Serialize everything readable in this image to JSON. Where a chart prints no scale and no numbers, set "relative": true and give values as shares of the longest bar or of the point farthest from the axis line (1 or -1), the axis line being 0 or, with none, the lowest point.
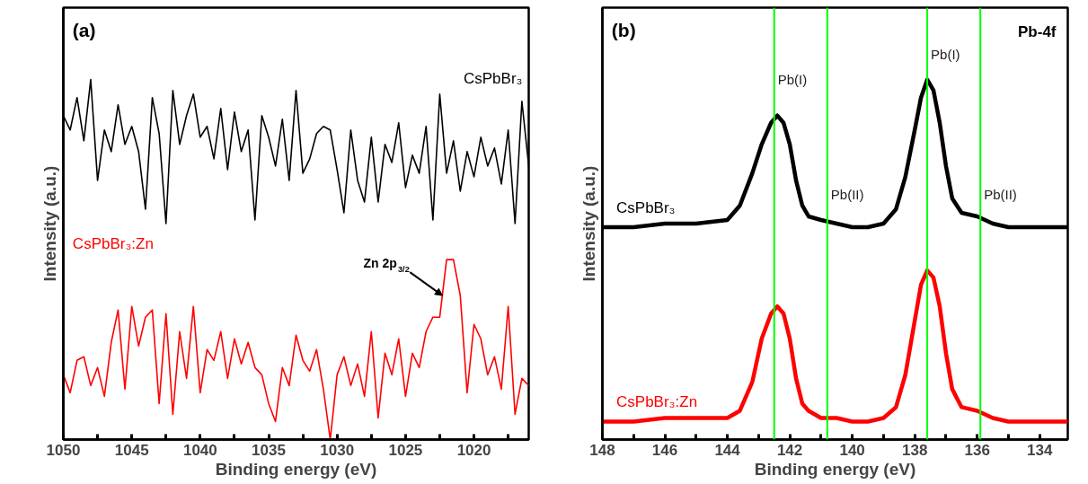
{
  "chart_data": [
    {
      "type": "line",
      "relative": true,
      "xlabel": "Binding energy (eV)",
      "ylabel": "Intensity (a.u.)",
      "xlim": [
        1050,
        1016
      ],
      "xticks": [
        1050,
        {
          "value": 1047.5,
          "label": null
        },
        1045,
        {
          "value": 1042.5,
          "label": null
        },
        1040,
        {
          "value": 1037.5,
          "label": null
        },
        1035,
        {
          "value": 1032.5,
          "label": null
        },
        1030,
        {
          "value": 1027.5,
          "label": null
        },
        1025,
        {
          "value": 1022.5,
          "label": null
        },
        1020,
        {
          "value": 1017.5,
          "label": null
        }
      ],
      "x": [
        1050,
        1049.5,
        1049,
        1048.5,
        1048,
        1047.5,
        1047,
        1046.5,
        1046,
        1045.5,
        1045,
        1044.5,
        1044,
        1043.5,
        1043,
        1042.5,
        1042,
        1041.5,
        1041,
        1040.5,
        1040,
        1039.5,
        1039,
        1038.5,
        1038,
        1037.5,
        1037,
        1036.5,
        1036,
        1035.5,
        1035,
        1034.5,
        1034,
        1033.5,
        1033,
        1032.5,
        1032,
        1031.5,
        1031,
        1030.5,
        1030,
        1029.5,
        1029,
        1028.5,
        1028,
        1027.5,
        1027,
        1026.5,
        1026,
        1025.5,
        1025,
        1024.5,
        1024,
        1023.5,
        1023,
        1022.5,
        1022,
        1021.5,
        1021,
        1020.5,
        1020,
        1019.5,
        1019,
        1018.5,
        1018,
        1017.5,
        1017,
        1016.5,
        1016
      ],
      "series": [
        {
          "name": "CsPbBr₃",
          "color": "#000000",
          "values": [
            0.9,
            0.86,
            0.95,
            0.83,
            1.0,
            0.72,
            0.86,
            0.8,
            0.93,
            0.82,
            0.87,
            0.8,
            0.64,
            0.95,
            0.85,
            0.6,
            0.97,
            0.82,
            0.9,
            0.96,
            0.84,
            0.87,
            0.78,
            0.92,
            0.75,
            0.91,
            0.8,
            0.86,
            0.61,
            0.9,
            0.84,
            0.76,
            0.89,
            0.72,
            0.97,
            0.74,
            0.78,
            0.85,
            0.87,
            0.86,
            0.75,
            0.63,
            0.86,
            0.72,
            0.66,
            0.84,
            0.66,
            0.82,
            0.77,
            0.88,
            0.7,
            0.79,
            0.74,
            0.87,
            0.61,
            0.96,
            0.74,
            0.83,
            0.69,
            0.8,
            0.73,
            0.84,
            0.76,
            0.81,
            0.71,
            0.86,
            0.6,
            0.94,
            0.76
          ]
        },
        {
          "name": "CsPbBr₃:Zn",
          "color": "#ff0000",
          "values": [
            0.18,
            0.13,
            0.22,
            0.23,
            0.15,
            0.2,
            0.12,
            0.27,
            0.36,
            0.14,
            0.37,
            0.26,
            0.34,
            0.36,
            0.1,
            0.35,
            0.07,
            0.3,
            0.17,
            0.37,
            0.13,
            0.25,
            0.22,
            0.3,
            0.17,
            0.28,
            0.21,
            0.27,
            0.2,
            0.18,
            0.1,
            0.05,
            0.2,
            0.15,
            0.29,
            0.22,
            0.19,
            0.25,
            0.14,
            0.0,
            0.18,
            0.23,
            0.15,
            0.21,
            0.12,
            0.3,
            0.06,
            0.24,
            0.18,
            0.28,
            0.12,
            0.24,
            0.2,
            0.3,
            0.34,
            0.34,
            0.5,
            0.5,
            0.4,
            0.13,
            0.32,
            0.28,
            0.18,
            0.23,
            0.14,
            0.37,
            0.07,
            0.17,
            0.15
          ]
        }
      ],
      "annotations": [
        "(a)",
        {
          "text": "Zn 2p$_{3/2}$",
          "x": 1022.3,
          "y": 0.4
        }
      ]
    },
    {
      "type": "line",
      "relative": true,
      "xlabel": "Binding energy (eV)",
      "ylabel": "Intensity (a.u.)",
      "xlim": [
        148,
        133.1
      ],
      "xticks": [
        148,
        {
          "value": 147,
          "label": null
        },
        146,
        {
          "value": 145,
          "label": null
        },
        144,
        {
          "value": 143,
          "label": null
        },
        142,
        {
          "value": 141,
          "label": null
        },
        140,
        {
          "value": 139,
          "label": null
        },
        138,
        {
          "value": 137,
          "label": null
        },
        136,
        {
          "value": 135,
          "label": null
        },
        134
      ],
      "x": [
        148,
        147,
        146,
        145,
        144,
        143.6,
        143.2,
        142.9,
        142.6,
        142.4,
        142.2,
        142,
        141.8,
        141.6,
        141.4,
        141,
        140.5,
        140,
        139.5,
        139,
        138.6,
        138.3,
        138,
        137.8,
        137.6,
        137.4,
        137.2,
        137,
        136.8,
        136.5,
        136,
        135.5,
        135,
        134,
        133.1
      ],
      "series": [
        {
          "name": "CsPbBr₃",
          "color": "#000000",
          "values": [
            0.59,
            0.59,
            0.6,
            0.6,
            0.61,
            0.65,
            0.74,
            0.82,
            0.88,
            0.9,
            0.88,
            0.82,
            0.72,
            0.65,
            0.62,
            0.61,
            0.6,
            0.59,
            0.59,
            0.6,
            0.64,
            0.73,
            0.86,
            0.95,
            1.0,
            0.97,
            0.88,
            0.76,
            0.67,
            0.63,
            0.62,
            0.6,
            0.59,
            0.59,
            0.59
          ]
        },
        {
          "name": "CsPbBr₃:Zn",
          "color": "#ff0000",
          "values": [
            0.05,
            0.05,
            0.06,
            0.06,
            0.06,
            0.08,
            0.16,
            0.28,
            0.35,
            0.37,
            0.35,
            0.28,
            0.17,
            0.1,
            0.08,
            0.06,
            0.06,
            0.05,
            0.05,
            0.06,
            0.09,
            0.18,
            0.33,
            0.43,
            0.47,
            0.45,
            0.37,
            0.24,
            0.14,
            0.09,
            0.08,
            0.06,
            0.05,
            0.05,
            0.05
          ]
        }
      ],
      "ref_lines": [
        {
          "axis": "x",
          "value": 142.5,
          "label": "Pb(I)",
          "color": "#00ff00"
        },
        {
          "axis": "x",
          "value": 140.8,
          "label": "Pb(II)",
          "color": "#00ff00"
        },
        {
          "axis": "x",
          "value": 137.6,
          "label": "Pb(I)",
          "color": "#00ff00"
        },
        {
          "axis": "x",
          "value": 135.9,
          "label": "Pb(II)",
          "color": "#00ff00"
        }
      ],
      "annotations": [
        "(b)",
        "Pb-4f"
      ]
    }
  ]
}
